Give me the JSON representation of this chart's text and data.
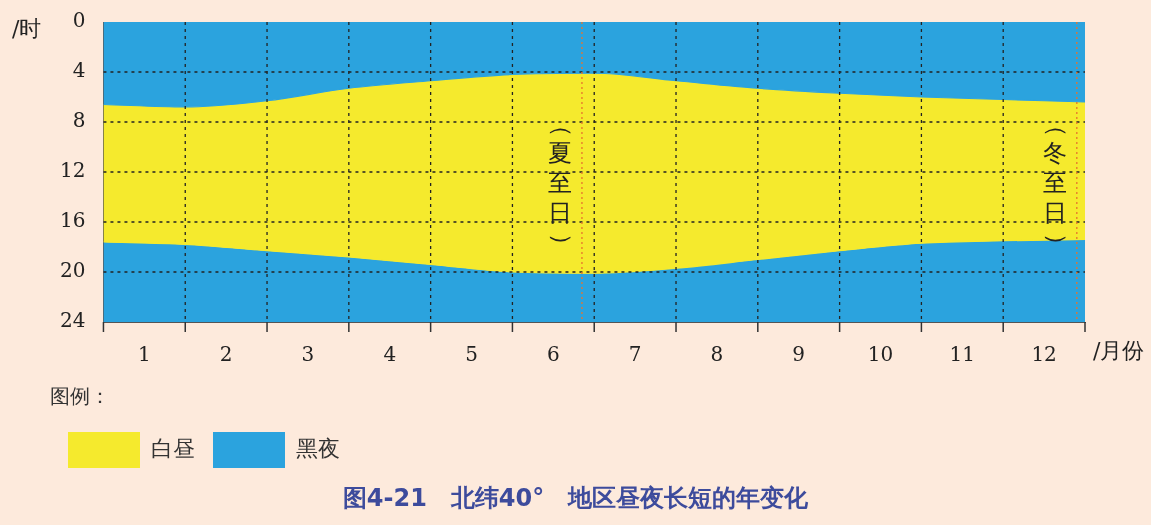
{
  "chart_data": {
    "type": "area",
    "title": "图4-21　北纬40°　地区昼夜长短的年变化",
    "ylabel": "/时",
    "xlabel": "/月份",
    "legend_title": "图例：",
    "x": [
      0,
      1,
      2,
      3,
      4,
      5,
      6,
      7,
      8,
      9,
      10,
      11,
      12
    ],
    "xlim": [
      0,
      12
    ],
    "xticks": [
      {
        "value": 0,
        "label": null
      },
      {
        "value": 0.5,
        "label": "1"
      },
      {
        "value": 1,
        "label": null
      },
      {
        "value": 1.5,
        "label": "2"
      },
      {
        "value": 2,
        "label": null
      },
      {
        "value": 2.5,
        "label": "3"
      },
      {
        "value": 3,
        "label": null
      },
      {
        "value": 3.5,
        "label": "4"
      },
      {
        "value": 4,
        "label": null
      },
      {
        "value": 4.5,
        "label": "5"
      },
      {
        "value": 5,
        "label": null
      },
      {
        "value": 5.5,
        "label": "6"
      },
      {
        "value": 6,
        "label": null
      },
      {
        "value": 6.5,
        "label": "7"
      },
      {
        "value": 7,
        "label": null
      },
      {
        "value": 7.5,
        "label": "8"
      },
      {
        "value": 8,
        "label": null
      },
      {
        "value": 8.5,
        "label": "9"
      },
      {
        "value": 9,
        "label": null
      },
      {
        "value": 9.5,
        "label": "10"
      },
      {
        "value": 10,
        "label": null
      },
      {
        "value": 10.5,
        "label": "11"
      },
      {
        "value": 11,
        "label": null
      },
      {
        "value": 11.5,
        "label": "12"
      },
      {
        "value": 12,
        "label": null
      }
    ],
    "ylim": [
      24,
      0
    ],
    "yticks": [
      0,
      4,
      8,
      12,
      16,
      20,
      24
    ],
    "stacked": true,
    "series": [
      {
        "name": "黑夜",
        "color": "#2ba3de",
        "values": [
          6.6,
          6.8,
          6.3,
          5.3,
          4.7,
          4.2,
          4.1,
          4.7,
          5.3,
          5.7,
          6.0,
          6.2,
          6.4
        ]
      },
      {
        "name": "白昼",
        "color": "#f5ea2d",
        "values": [
          11.0,
          11.0,
          12.0,
          13.5,
          14.7,
          15.8,
          16.0,
          15.0,
          13.7,
          12.6,
          11.7,
          11.3,
          11.0
        ]
      },
      {
        "color": "#2ba3de",
        "values": [
          6.4,
          6.2,
          5.7,
          5.2,
          4.6,
          4.0,
          3.9,
          4.3,
          5.0,
          5.7,
          6.3,
          6.5,
          6.6
        ]
      }
    ],
    "ref_lines": [
      {
        "axis": "x",
        "value": 5.85,
        "label": "（夏至日）",
        "color": "#e8742a",
        "line_style": "dotted"
      },
      {
        "axis": "x",
        "value": 11.9,
        "label": "（冬至日）",
        "color": "#e8742a",
        "line_style": "dotted"
      }
    ],
    "grid": true,
    "legend": "bottom left"
  }
}
